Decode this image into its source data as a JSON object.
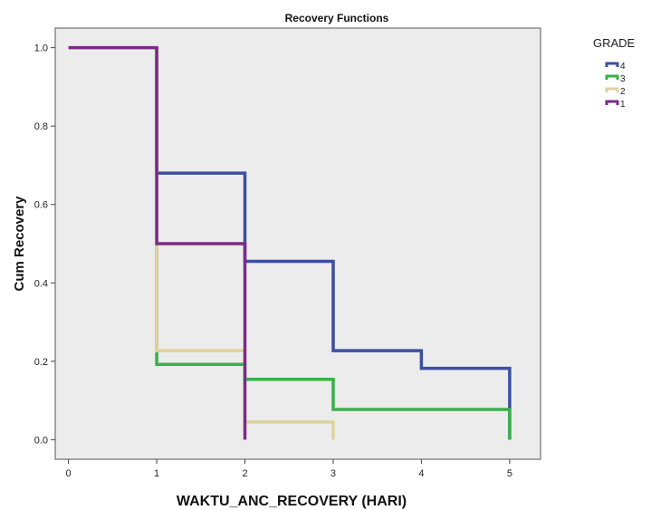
{
  "chart_data": {
    "type": "line",
    "step": true,
    "title": "Recovery Functions",
    "xlabel": "WAKTU_ANC_RECOVERY (HARI)",
    "ylabel": "Cum Recovery",
    "xlim": [
      -0.15,
      5.35
    ],
    "ylim": [
      -0.05,
      1.05
    ],
    "x_ticks": [
      "0",
      "1",
      "2",
      "3",
      "4",
      "5"
    ],
    "y_ticks": [
      "0.0",
      "0.2",
      "0.4",
      "0.6",
      "0.8",
      "1.0"
    ],
    "grid": false,
    "background": "#ececec",
    "legend": {
      "title": "GRADE",
      "position": "right"
    },
    "series": [
      {
        "name": "4",
        "color": "#3c4fa0",
        "points": [
          [
            1,
            1.0
          ],
          [
            1,
            0.68
          ],
          [
            2,
            0.68
          ],
          [
            2,
            0.455
          ],
          [
            3,
            0.455
          ],
          [
            3,
            0.227
          ],
          [
            4,
            0.227
          ],
          [
            4,
            0.182
          ],
          [
            5,
            0.182
          ],
          [
            5,
            0.0
          ]
        ]
      },
      {
        "name": "3",
        "color": "#3bb04a",
        "points": [
          [
            1,
            1.0
          ],
          [
            1,
            0.192
          ],
          [
            2,
            0.192
          ],
          [
            2,
            0.154
          ],
          [
            3,
            0.154
          ],
          [
            3,
            0.077
          ],
          [
            5,
            0.077
          ],
          [
            5,
            0.0
          ]
        ]
      },
      {
        "name": "2",
        "color": "#ddd29e",
        "points": [
          [
            1,
            1.0
          ],
          [
            1,
            0.5
          ],
          [
            1,
            0.227
          ],
          [
            2,
            0.227
          ],
          [
            2,
            0.045
          ],
          [
            3,
            0.045
          ],
          [
            3,
            0.0
          ]
        ]
      },
      {
        "name": "1",
        "color": "#7b2b87",
        "points": [
          [
            0,
            1.0
          ],
          [
            1,
            1.0
          ],
          [
            1,
            0.5
          ],
          [
            2,
            0.5
          ],
          [
            2,
            0.0
          ]
        ]
      }
    ]
  }
}
